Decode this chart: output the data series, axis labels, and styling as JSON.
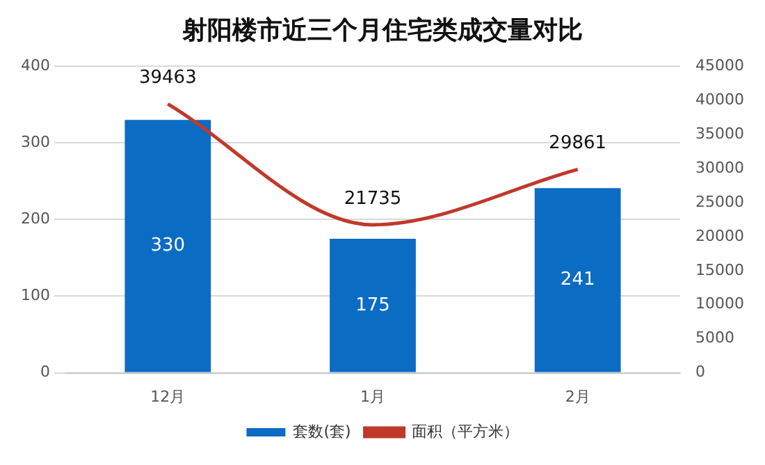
{
  "chart_data": {
    "type": "bar",
    "title": "射阳楼市近三个月住宅类成交量对比",
    "categories": [
      "12月",
      "1月",
      "2月"
    ],
    "series": [
      {
        "name": "套数(套)",
        "color": "#0b6cc4",
        "values": [
          330,
          175,
          241
        ]
      },
      {
        "name": "面积（平方米）",
        "type": "line",
        "axis": "y2",
        "color": "#c0392b",
        "values": [
          39463,
          21735,
          29861
        ]
      }
    ],
    "ylim": [
      0,
      400
    ],
    "yticks": [
      0,
      100,
      200,
      300,
      400
    ],
    "y2lim": [
      0,
      45000
    ],
    "y2ticks": [
      0,
      5000,
      10000,
      15000,
      20000,
      25000,
      30000,
      35000,
      40000,
      45000
    ],
    "grid": "y",
    "legend": "bottom",
    "data_labels": true,
    "marker": "none"
  }
}
